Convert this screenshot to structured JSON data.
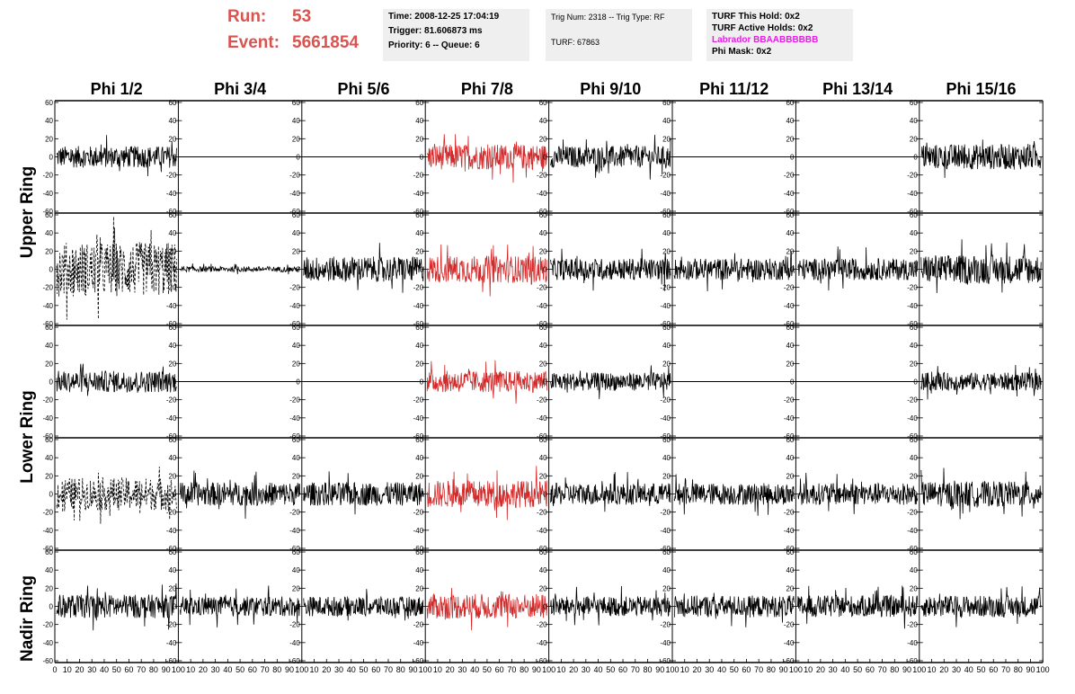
{
  "header": {
    "run_label": "Run:",
    "run_value": "53",
    "event_label": "Event:",
    "event_value": "5661854"
  },
  "timing_box": {
    "time": "Time: 2008-12-25 17:04:19",
    "trigger": "Trigger: 81.606873 ms",
    "priority": "Priority: 6 -- Queue: 6"
  },
  "trig_box": {
    "trig_line": "Trig Num: 2318 -- Trig Type: RF",
    "turf_line": "TURF: 67863"
  },
  "turf_box": {
    "this_hold": "TURF This Hold: 0x2",
    "active_holds": "TURF Active Holds: 0x2",
    "labrador": "Labrador BBAABBBBBB",
    "phi_mask": "Phi Mask: 0x2"
  },
  "columns": [
    "Phi 1/2",
    "Phi 3/4",
    "Phi 5/6",
    "Phi 7/8",
    "Phi 9/10",
    "Phi 11/12",
    "Phi 13/14",
    "Phi 15/16"
  ],
  "ring_labels": [
    "Upper Ring",
    "Lower Ring",
    "Nadir Ring"
  ],
  "colors": {
    "run_text": "#d9534f",
    "trigger_channel": "#d22a2a",
    "normal_channel": "#000000",
    "labrador_text": "#e61ee6",
    "info_box_bg": "#efefef"
  },
  "chart_data": {
    "type": "line",
    "y_ticks": [
      "60",
      "40",
      "20",
      "0",
      "-20",
      "-40",
      "-60"
    ],
    "x_ticks": [
      "0",
      "10",
      "20",
      "30",
      "40",
      "50",
      "60",
      "70",
      "80",
      "90",
      "100"
    ],
    "ylim": [
      -60,
      60
    ],
    "xlim": [
      0,
      100
    ],
    "triggered_column": "Phi 7/8",
    "rows": [
      {
        "ring": "Upper Ring",
        "amplitudes": [
          12,
          0,
          0,
          14,
          12,
          0,
          0,
          14
        ],
        "styles": [
          "solid",
          "flat",
          "flat",
          "red",
          "solid",
          "flat",
          "flat",
          "solid"
        ]
      },
      {
        "ring": "Upper Ring",
        "amplitudes": [
          30,
          3,
          14,
          15,
          12,
          12,
          12,
          16
        ],
        "styles": [
          "dashed",
          "solid",
          "solid",
          "red",
          "solid",
          "solid",
          "solid",
          "solid"
        ]
      },
      {
        "ring": "Lower Ring",
        "amplitudes": [
          12,
          0,
          0,
          12,
          10,
          0,
          0,
          10
        ],
        "styles": [
          "solid",
          "flat",
          "flat",
          "red",
          "solid",
          "flat",
          "flat",
          "solid"
        ]
      },
      {
        "ring": "Lower Ring",
        "amplitudes": [
          18,
          13,
          13,
          15,
          12,
          12,
          12,
          14
        ],
        "styles": [
          "dashed",
          "solid",
          "solid",
          "red",
          "solid",
          "solid",
          "solid",
          "solid"
        ]
      },
      {
        "ring": "Nadir Ring",
        "amplitudes": [
          13,
          11,
          11,
          14,
          11,
          12,
          12,
          12
        ],
        "styles": [
          "solid",
          "solid",
          "solid",
          "red",
          "solid",
          "solid",
          "solid",
          "solid"
        ]
      }
    ]
  }
}
